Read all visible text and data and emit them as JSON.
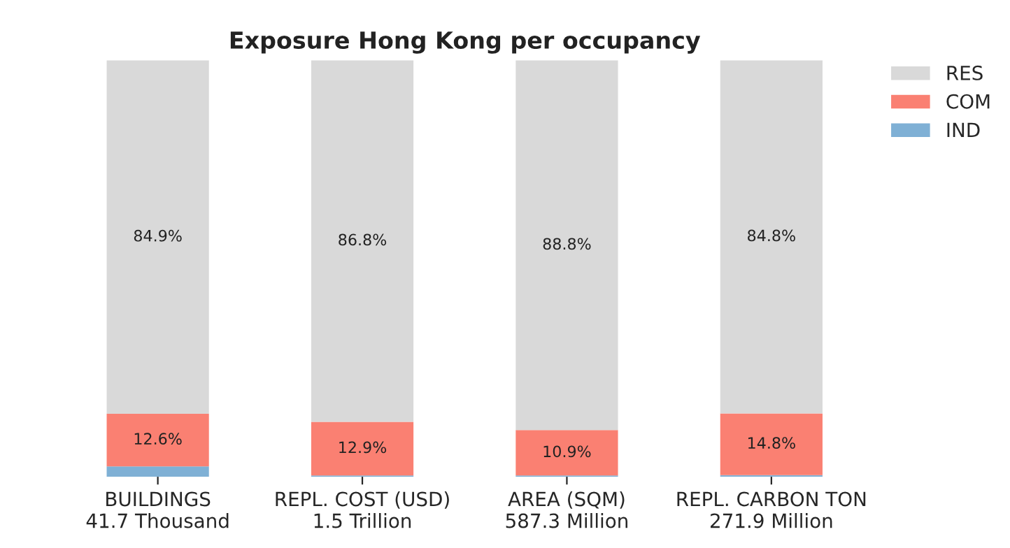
{
  "chart_data": {
    "type": "bar",
    "title": "Exposure Hong Kong per occupancy",
    "categories": [
      "BUILDINGS\n41.7 Thousand",
      "REPL. COST (USD)\n1.5 Trillion",
      "AREA (SQM)\n587.3 Million",
      "REPL. CARBON TON\n271.9 Million"
    ],
    "stacked": true,
    "ylim": [
      0,
      100
    ],
    "tick_labels": "x",
    "legend": "top right",
    "series": [
      {
        "name": "IND",
        "color": "#7fb0d5",
        "values": [
          2.5,
          0.3,
          0.3,
          0.4
        ],
        "value_labels": [
          null,
          null,
          null,
          null
        ]
      },
      {
        "name": "COM",
        "color": "#fa8072",
        "values": [
          12.6,
          12.9,
          10.9,
          14.8
        ],
        "value_labels": [
          "12.6%",
          "12.9%",
          "10.9%",
          "14.8%"
        ]
      },
      {
        "name": "RES",
        "color": "#d9d9d9",
        "values": [
          84.9,
          86.8,
          88.8,
          84.8
        ],
        "value_labels": [
          "84.9%",
          "86.8%",
          "88.8%",
          "84.8%"
        ]
      }
    ]
  }
}
